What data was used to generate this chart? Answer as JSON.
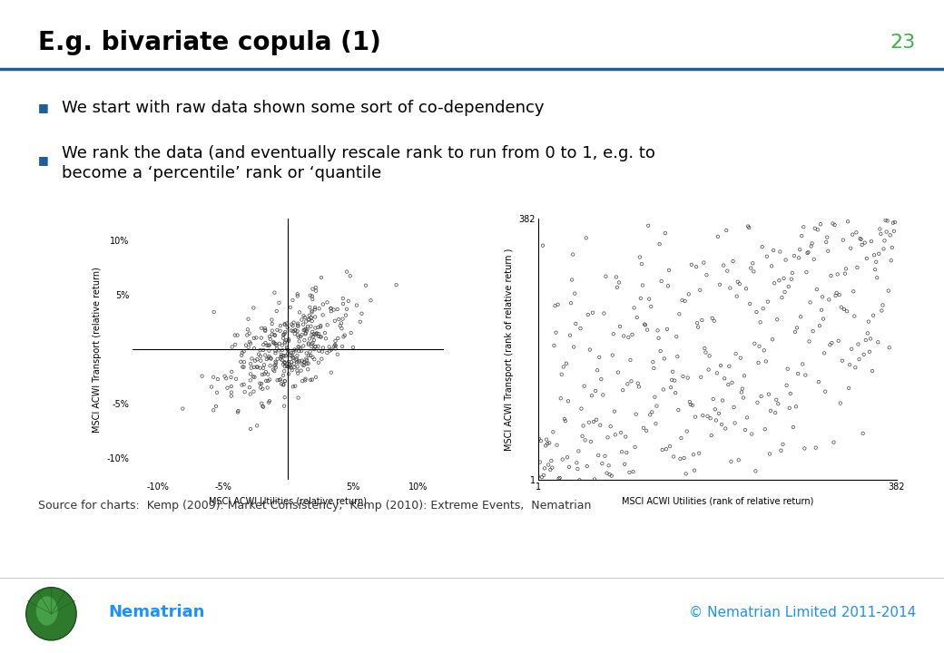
{
  "title": "E.g. bivariate copula (1)",
  "page_number": "23",
  "bullet1": "We start with raw data shown some sort of co-dependency",
  "bullet2_line1": "We rank the data (and eventually rescale rank to run from 0 to 1, e.g. to",
  "bullet2_line2": "become a ‘percentile’ rank or ‘quantile",
  "plot1_xlabel": "MSCI ACWI Utilities (relative return)",
  "plot1_ylabel": "MSCI ACWI Transport (relative return)",
  "plot1_xlim": [
    -0.12,
    0.12
  ],
  "plot1_ylim": [
    -0.12,
    0.12
  ],
  "plot1_xticks": [
    -0.1,
    -0.05,
    0.0,
    0.05,
    0.1
  ],
  "plot1_yticks": [
    -0.1,
    -0.05,
    0.0,
    0.05,
    0.1
  ],
  "plot1_xtick_labels": [
    "-10%",
    "-5%",
    "",
    "5%",
    "10%"
  ],
  "plot1_ytick_labels": [
    "-10%",
    "-5%",
    "",
    "5%",
    "10%"
  ],
  "plot2_xlabel": "MSCI ACWI Utilities (rank of relative return)",
  "plot2_ylabel": "MSCI ACWI Transport (rank of relative return )",
  "plot2_xlim": [
    1,
    382
  ],
  "plot2_ylim": [
    1,
    382
  ],
  "plot2_xtick_labels": [
    "1",
    "382"
  ],
  "plot2_ytick_labels": [
    "1",
    "382"
  ],
  "source_text": "Source for charts:  Kemp (2009): Market Consistency,  Kemp (2010): Extreme Events,  Nematrian",
  "copyright_text": "© Nematrian Limited 2011-2014",
  "nematrian_text": "Nematrian",
  "background_color": "#ffffff",
  "title_color": "#000000",
  "title_fontsize": 20,
  "bullet_fontsize": 13,
  "bullet_color": "#000000",
  "bullet_square_color": "#1F5C9E",
  "page_num_color": "#3cb043",
  "header_line_color": "#1F5C9E",
  "scatter_color": "#444444",
  "scatter_marker": "o",
  "scatter_size": 6,
  "n_points": 380,
  "seed": 42,
  "source_fontsize": 9,
  "axis_label_fontsize": 7,
  "tick_fontsize": 7,
  "copyright_color": "#1E90FF",
  "nematrian_color": "#1E90FF"
}
